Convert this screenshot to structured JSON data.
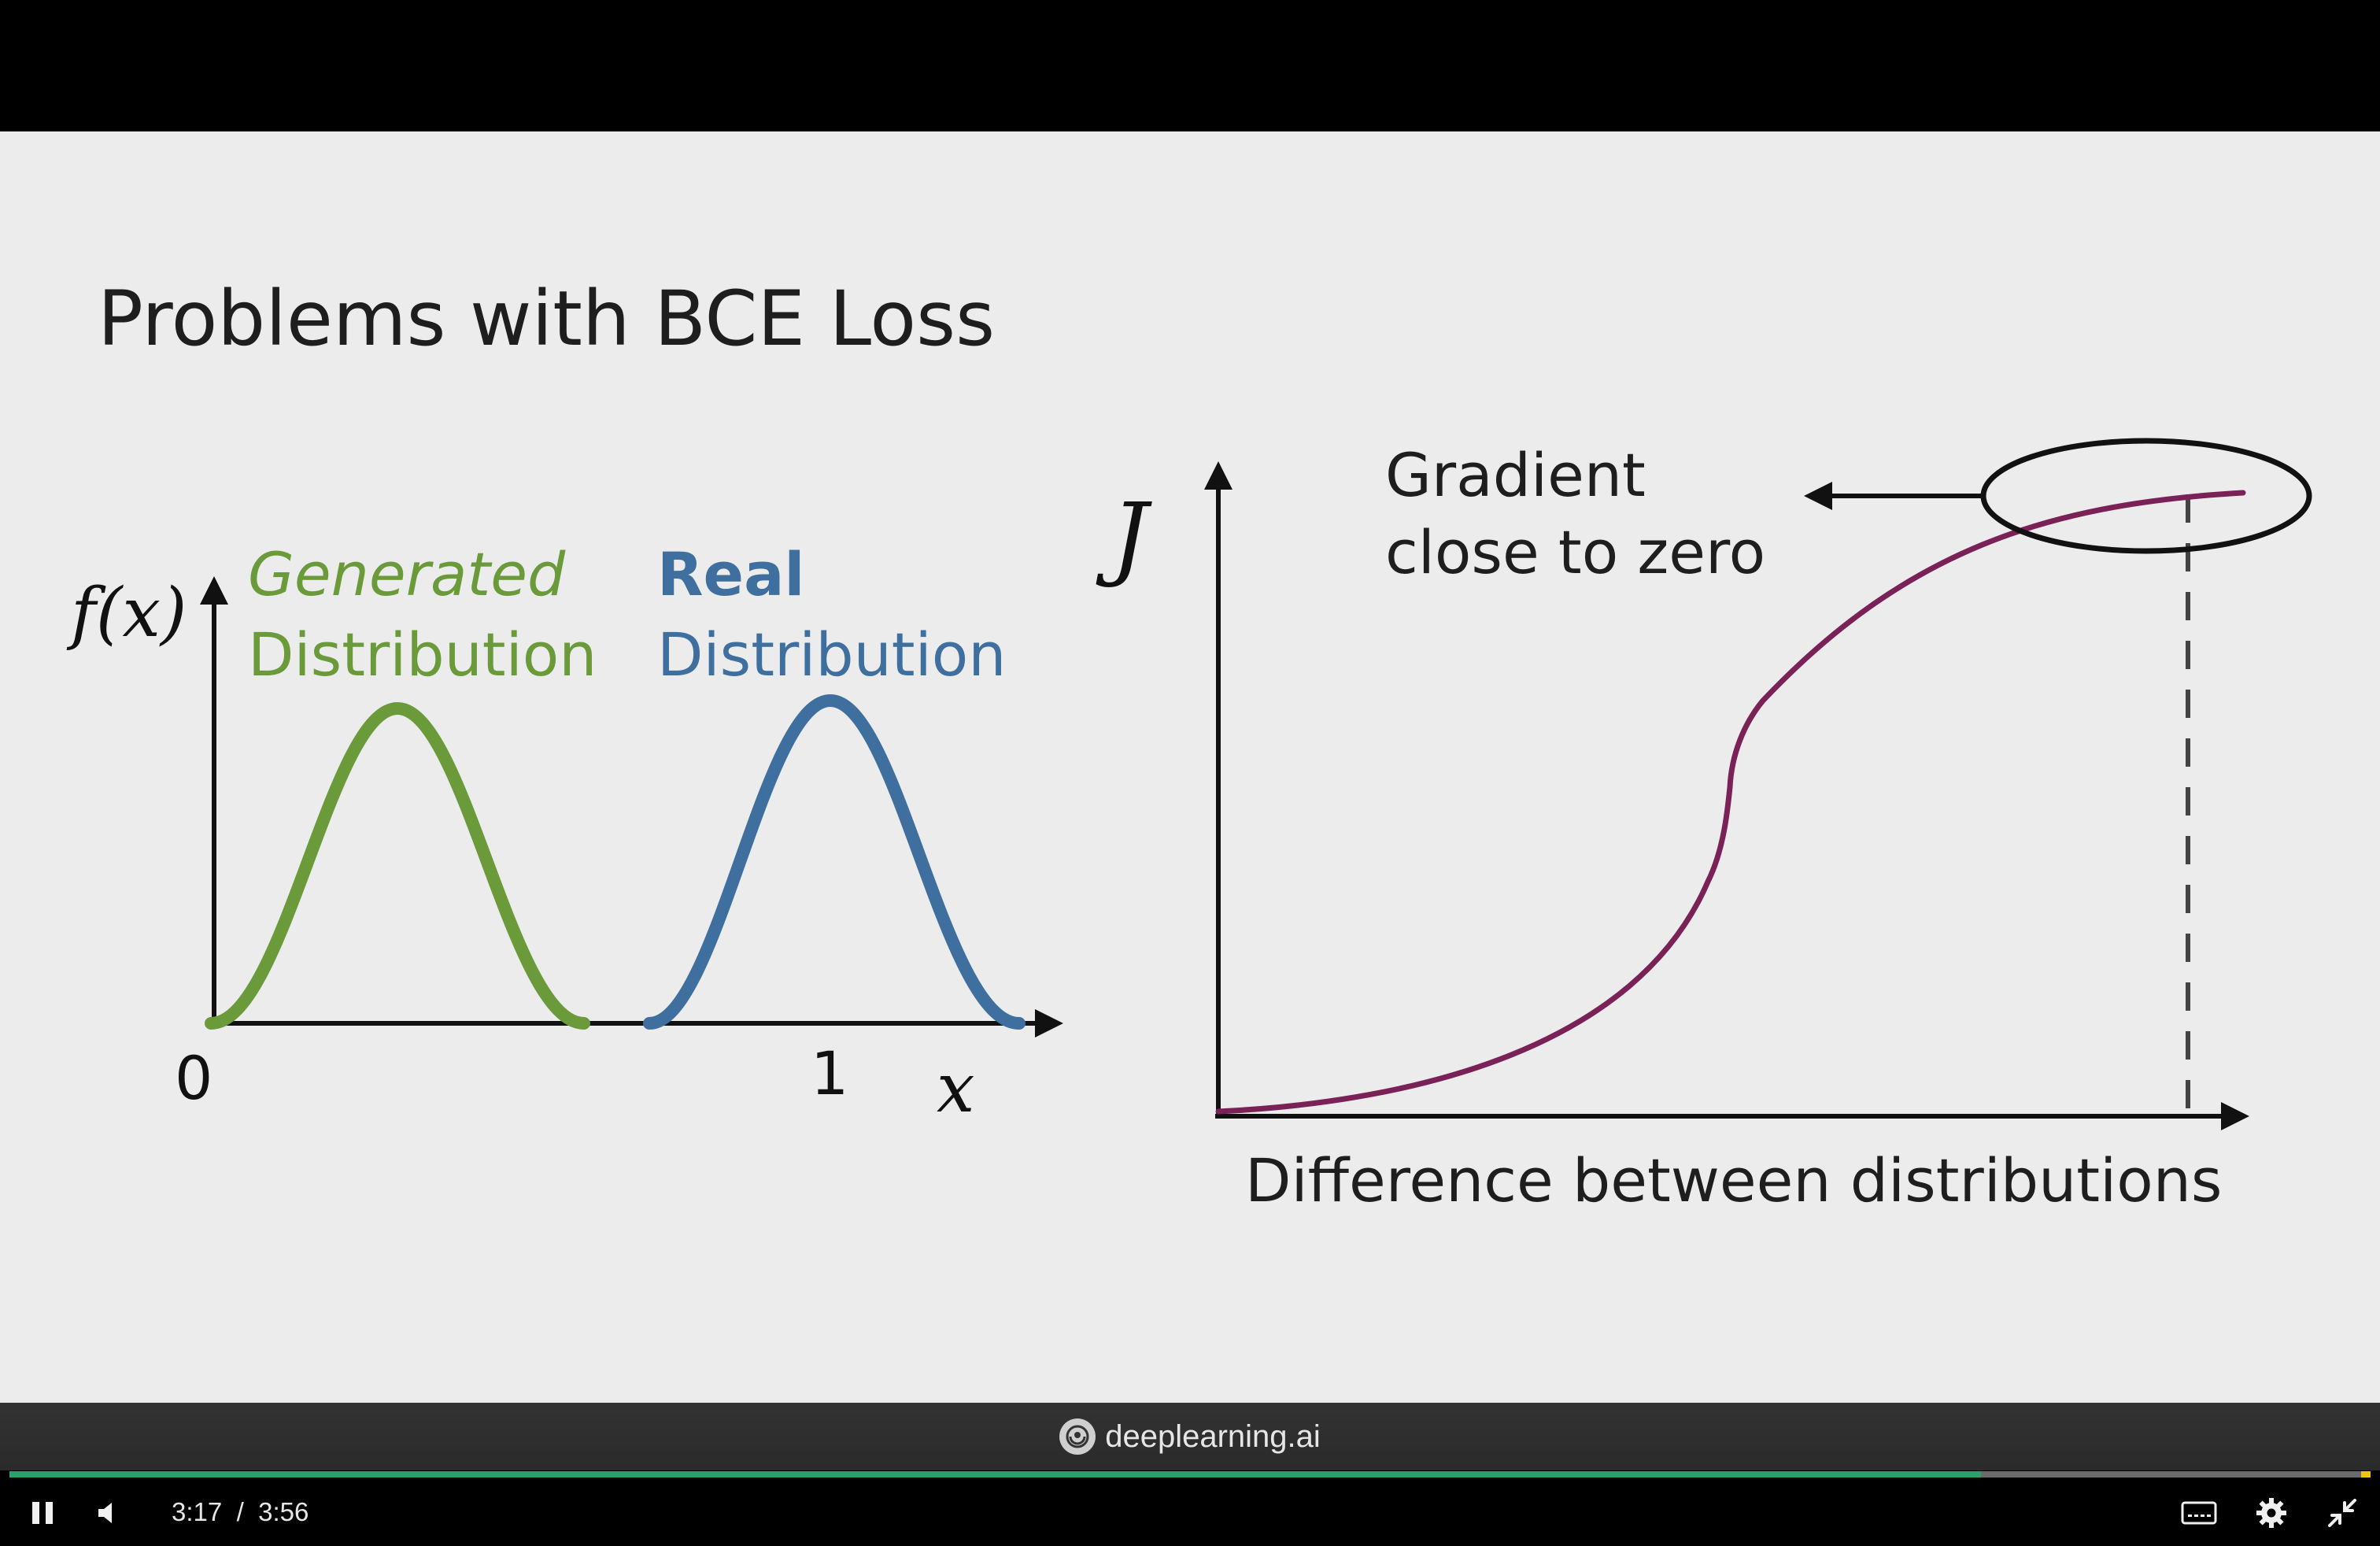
{
  "slide": {
    "title": "Problems with BCE Loss",
    "left_chart": {
      "y_label": "f(x)",
      "x_label": "x",
      "tick_0": "0",
      "tick_1": "1",
      "generated_line1": "Generated",
      "generated_line2": "Distribution",
      "real_line1": "Real",
      "real_line2": "Distribution"
    },
    "right_chart": {
      "y_label": "J",
      "x_label": "Difference between distributions",
      "annotation_line1": "Gradient",
      "annotation_line2": "close to zero"
    }
  },
  "chart_data": [
    {
      "type": "line",
      "title": "",
      "xlabel": "x",
      "ylabel": "f(x)",
      "x_ticks": [
        "0",
        "1"
      ],
      "series": [
        {
          "name": "Generated Distribution",
          "color": "#6a9a3a",
          "shape": "bell",
          "peak_x": 0.27
        },
        {
          "name": "Real Distribution",
          "color": "#3f6f9e",
          "shape": "bell",
          "peak_x": 1.0
        }
      ]
    },
    {
      "type": "line",
      "title": "",
      "xlabel": "Difference between distributions",
      "ylabel": "J",
      "series": [
        {
          "name": "",
          "color": "#7a2257",
          "shape": "s-curve saturating"
        }
      ],
      "annotation": "Gradient close to zero"
    }
  ],
  "brand": {
    "name": "deeplearning.ai"
  },
  "player": {
    "current_time": "3:17",
    "separator": "/",
    "duration": "3:56",
    "progress_fraction": 0.835,
    "colors": {
      "played": "#26a36a",
      "buffered": "#6b6b6b",
      "end_marker": "#f1c40f"
    }
  }
}
